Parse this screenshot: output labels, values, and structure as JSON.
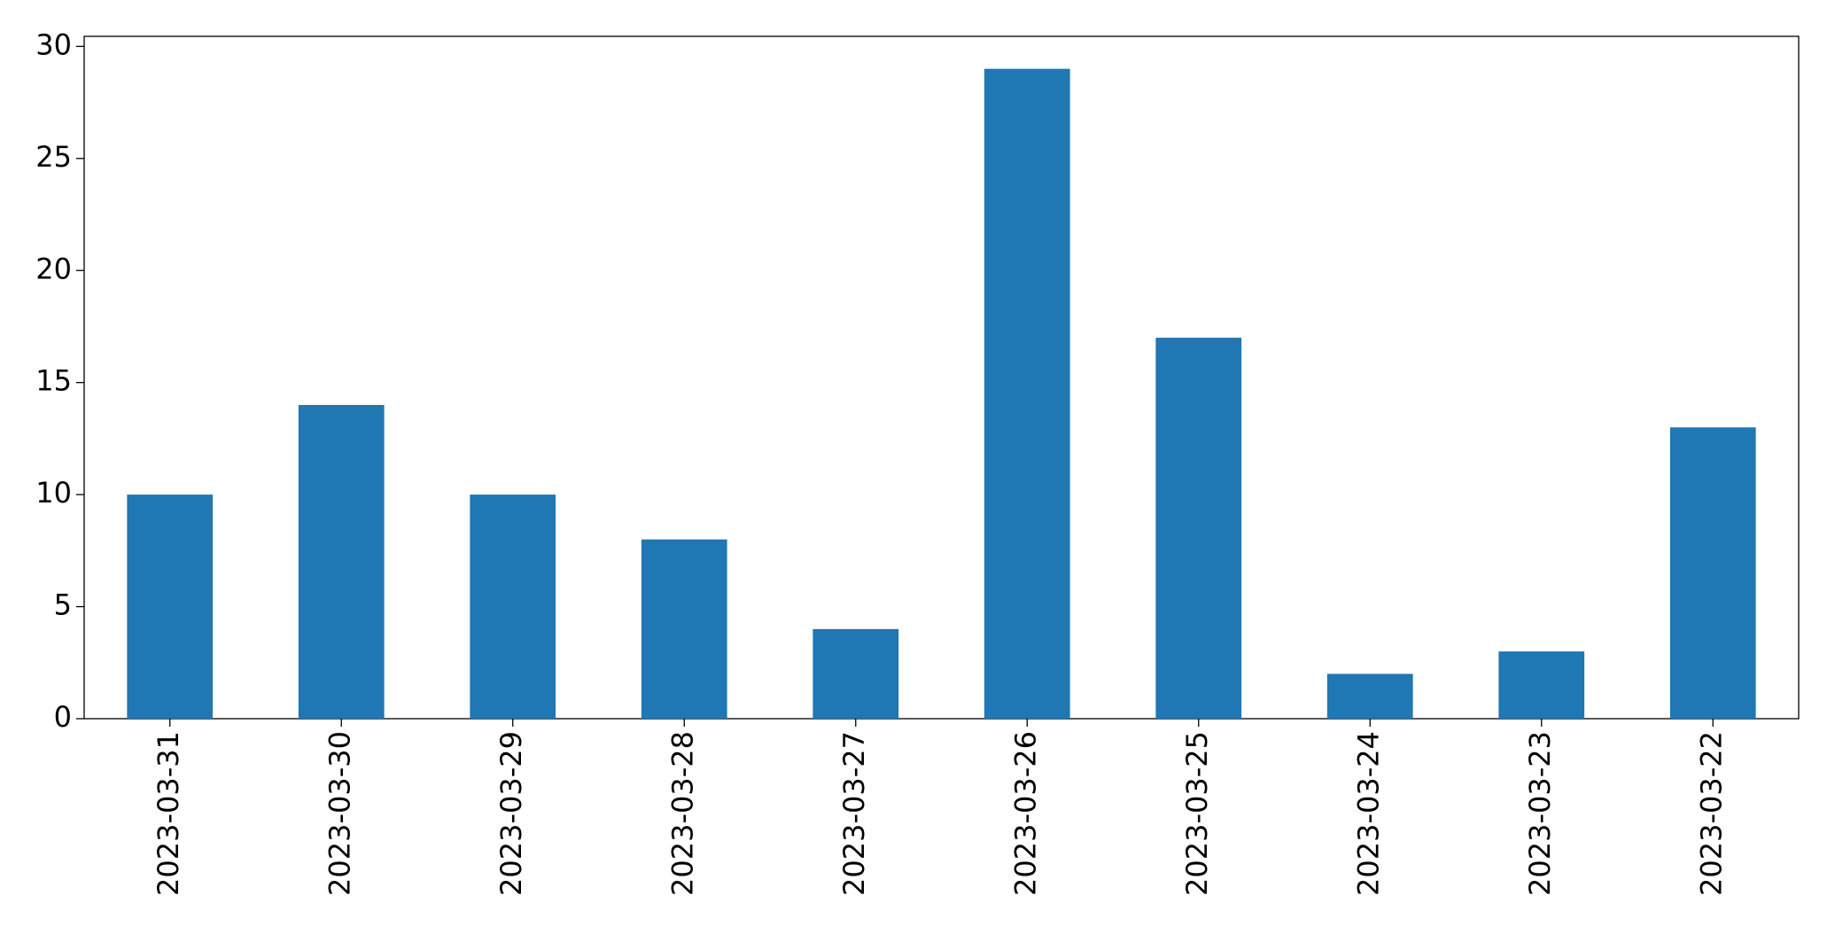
{
  "chart_data": {
    "type": "bar",
    "categories": [
      "2023-03-31",
      "2023-03-30",
      "2023-03-29",
      "2023-03-28",
      "2023-03-27",
      "2023-03-26",
      "2023-03-25",
      "2023-03-24",
      "2023-03-23",
      "2023-03-22"
    ],
    "values": [
      10,
      14,
      10,
      8,
      4,
      29,
      17,
      2,
      3,
      13
    ],
    "color": "#1f77b4",
    "ylim": [
      0,
      30.45
    ],
    "yticks": [
      0,
      5,
      10,
      15,
      20,
      25,
      30
    ],
    "grid": false
  }
}
